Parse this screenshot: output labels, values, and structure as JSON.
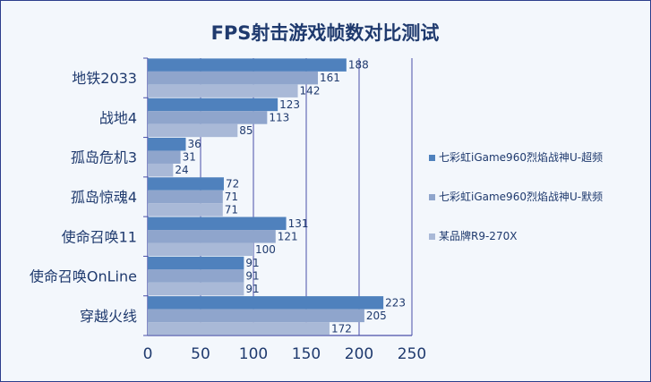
{
  "chart_data": {
    "type": "bar",
    "orientation": "horizontal",
    "title": "FPS射击游戏帧数对比测试",
    "categories": [
      "地铁2033",
      "战地4",
      "孤岛危机3",
      "孤岛惊魂4",
      "使命召唤11",
      "使命召唤OnLine",
      "穿越火线"
    ],
    "series": [
      {
        "name": "七彩虹iGame960烈焰战神U-超频",
        "color": "#4f81bd",
        "values": [
          188,
          123,
          36,
          72,
          131,
          91,
          223
        ]
      },
      {
        "name": "七彩虹iGame960烈焰战神U-默频",
        "color": "#8fa5cc",
        "values": [
          161,
          113,
          31,
          71,
          121,
          91,
          205
        ]
      },
      {
        "name": "某品牌R9-270X",
        "color": "#a9b9d7",
        "values": [
          142,
          85,
          24,
          71,
          100,
          91,
          172
        ]
      }
    ],
    "xlim": [
      0,
      250
    ],
    "xticks": [
      "0",
      "50",
      "100",
      "150",
      "200",
      "250"
    ],
    "grid": true,
    "legend": "right"
  }
}
